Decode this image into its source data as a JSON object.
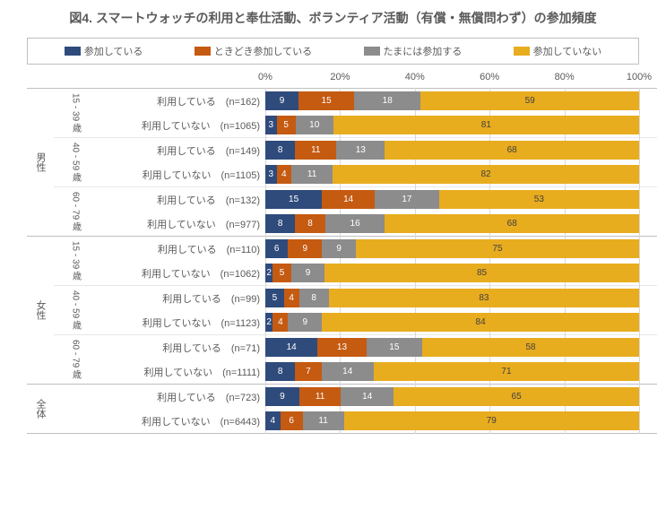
{
  "title": "図4. スマートウォッチの利用と奉仕活動、ボランティア活動（有償・無償問わず）の参加頻度",
  "legend": [
    {
      "label": "参加している",
      "color": "#2f4b7c"
    },
    {
      "label": "ときどき参加している",
      "color": "#c55a11"
    },
    {
      "label": "たまには参加する",
      "color": "#8c8c8c"
    },
    {
      "label": "参加していない",
      "color": "#e8ac1f"
    }
  ],
  "axis": {
    "ticks": [
      0,
      20,
      40,
      60,
      80,
      100
    ],
    "suffix": "%"
  },
  "textColors": {
    "onDark": "#ffffff",
    "onLight": "#404040"
  },
  "groups": [
    {
      "label": "男性",
      "subgroups": [
        {
          "label": "15 - 39 歳",
          "rows": [
            {
              "label": "利用している",
              "n": 162,
              "values": [
                9,
                15,
                18,
                59
              ]
            },
            {
              "label": "利用していない",
              "n": 1065,
              "values": [
                3,
                5,
                10,
                81
              ]
            }
          ]
        },
        {
          "label": "40 - 59 歳",
          "rows": [
            {
              "label": "利用している",
              "n": 149,
              "values": [
                8,
                11,
                13,
                68
              ]
            },
            {
              "label": "利用していない",
              "n": 1105,
              "values": [
                3,
                4,
                11,
                82
              ]
            }
          ]
        },
        {
          "label": "60 - 79 歳",
          "rows": [
            {
              "label": "利用している",
              "n": 132,
              "values": [
                15,
                14,
                17,
                53
              ]
            },
            {
              "label": "利用していない",
              "n": 977,
              "values": [
                8,
                8,
                16,
                68
              ]
            }
          ]
        }
      ]
    },
    {
      "label": "女性",
      "subgroups": [
        {
          "label": "15 - 39 歳",
          "rows": [
            {
              "label": "利用している",
              "n": 110,
              "values": [
                6,
                9,
                9,
                75
              ]
            },
            {
              "label": "利用していない",
              "n": 1062,
              "values": [
                2,
                5,
                9,
                85
              ]
            }
          ]
        },
        {
          "label": "40 - 59 歳",
          "rows": [
            {
              "label": "利用している",
              "n": 99,
              "values": [
                5,
                4,
                8,
                83
              ]
            },
            {
              "label": "利用していない",
              "n": 1123,
              "values": [
                2,
                4,
                9,
                84
              ]
            }
          ]
        },
        {
          "label": "60 - 79 歳",
          "rows": [
            {
              "label": "利用している",
              "n": 71,
              "values": [
                14,
                13,
                15,
                58
              ]
            },
            {
              "label": "利用していない",
              "n": 1111,
              "values": [
                8,
                7,
                14,
                71
              ]
            }
          ]
        }
      ]
    },
    {
      "label": "全体",
      "subgroups": [
        {
          "label": "",
          "rows": [
            {
              "label": "利用している",
              "n": 723,
              "values": [
                9,
                11,
                14,
                65
              ]
            },
            {
              "label": "利用していない",
              "n": 6443,
              "values": [
                4,
                6,
                11,
                79
              ]
            }
          ]
        }
      ]
    }
  ]
}
